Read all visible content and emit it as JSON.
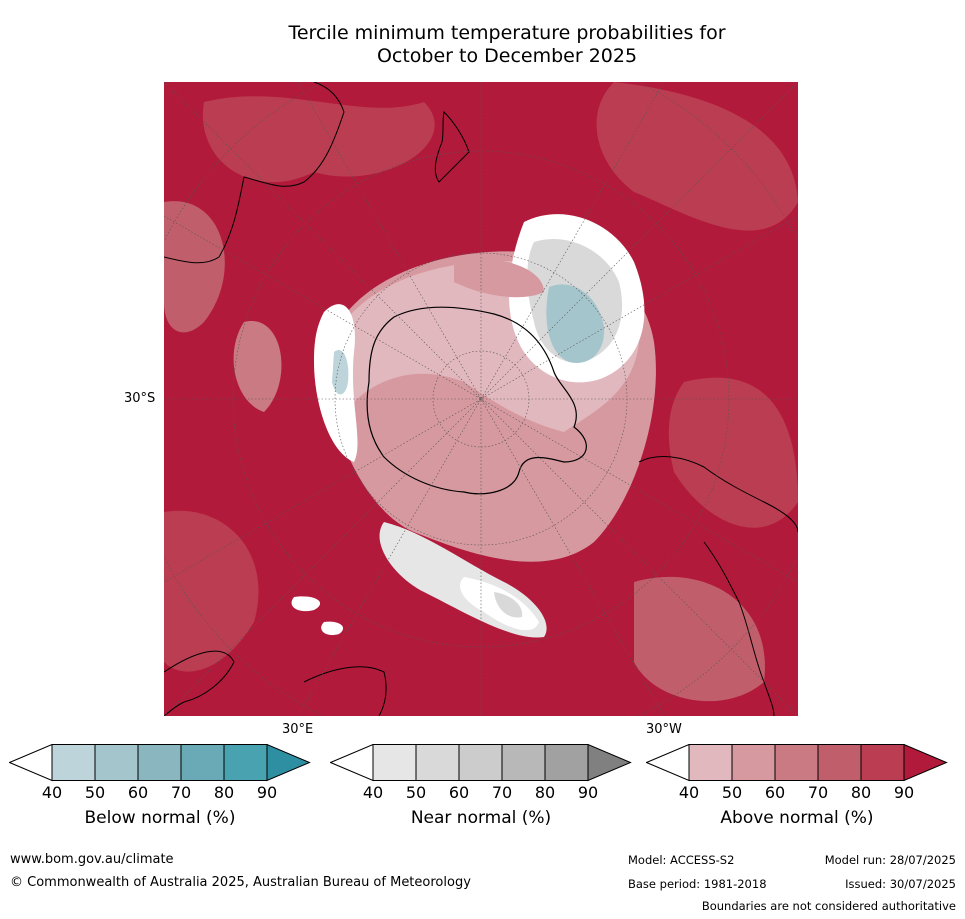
{
  "title_line1": "Tercile minimum temperature probabilities for",
  "title_line2": "October to December 2025",
  "map": {
    "label_lat": "30°S",
    "label_lon_east": "30°E",
    "label_lon_west": "30°W"
  },
  "colorbars": [
    {
      "title": "Below normal (%)",
      "ticks": [
        "40",
        "50",
        "60",
        "70",
        "80",
        "90"
      ],
      "colors": [
        "#ffffff",
        "#bcd4da",
        "#a5c5cc",
        "#89b6bf",
        "#6aaab6",
        "#49a2b0",
        "#2e8fa3"
      ]
    },
    {
      "title": "Near normal (%)",
      "ticks": [
        "40",
        "50",
        "60",
        "70",
        "80",
        "90"
      ],
      "colors": [
        "#ffffff",
        "#e6e6e6",
        "#d9d9d9",
        "#cccccc",
        "#b8b8b8",
        "#a1a1a1",
        "#808080"
      ]
    },
    {
      "title": "Above normal (%)",
      "ticks": [
        "40",
        "50",
        "60",
        "70",
        "80",
        "90"
      ],
      "colors": [
        "#ffffff",
        "#e2b8bf",
        "#d6999f",
        "#ca7a83",
        "#c15e6b",
        "#bb3d51",
        "#b21a3b"
      ]
    }
  ],
  "footer": {
    "url": "www.bom.gov.au/climate",
    "copyright": "© Commonwealth of Australia 2025, Australian Bureau of Meteorology",
    "model": "Model: ACCESS-S2",
    "model_run": "Model run: 28/07/2025",
    "base_period": "Base period: 1981-2018",
    "issued": "Issued: 30/07/2025",
    "disclaimer": "Boundaries are not considered authoritative"
  }
}
